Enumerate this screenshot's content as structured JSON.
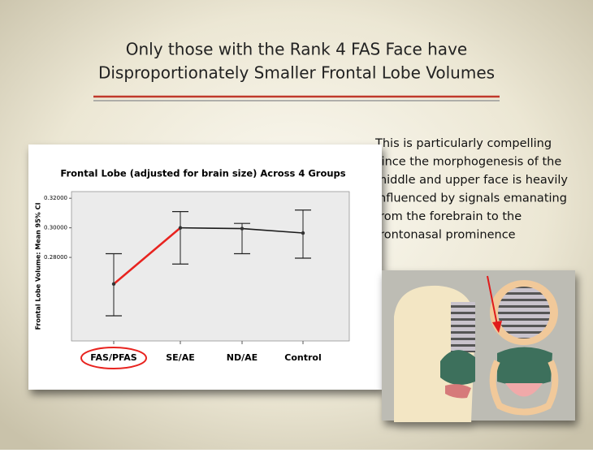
{
  "slide": {
    "title_lines": [
      "Only those with the Rank 4 FAS Face have",
      "Disproportionately Smaller Frontal Lobe Volumes"
    ],
    "text_lines": [
      "This is particularly compelling",
      "since the morphogenesis of the",
      "middle and upper face is heavily",
      "influenced by signals emanating",
      "from the forebrain to the",
      "frontonasal prominence"
    ]
  },
  "chart_data": {
    "type": "errorbar-line",
    "title": "Frontal Lobe (adjusted for brain size) Across 4 Groups",
    "y_label": "Frontal Lobe Volume: Mean 95% CI",
    "categories": [
      "FAS/PFAS",
      "SE/AE",
      "ND/AE",
      "Control"
    ],
    "values": [
      0.262,
      0.3,
      0.2995,
      0.2965
    ],
    "ci_low": [
      0.2405,
      0.2755,
      0.2825,
      0.2795
    ],
    "ci_high": [
      0.2825,
      0.311,
      0.303,
      0.312
    ],
    "line_colors": [
      "#e8231f",
      "#1a1a1a",
      "#1a1a1a"
    ],
    "highlight_color": "#e8231f",
    "highlight_index": 0,
    "ylim": [
      0.2235,
      0.3245
    ],
    "yticks": [
      {
        "value": 0.28,
        "label": "0.28000"
      },
      {
        "value": 0.3,
        "label": "0.30000"
      },
      {
        "value": 0.32,
        "label": "0.32000"
      }
    ]
  }
}
